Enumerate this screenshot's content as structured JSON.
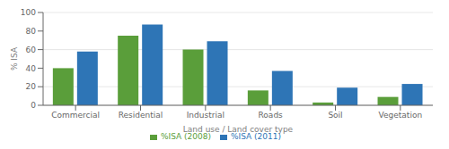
{
  "chart_data": {
    "type": "bar",
    "categories": [
      "Commercial",
      "Residential",
      "Industrial",
      "Roads",
      "Soil",
      "Vegetation"
    ],
    "series": [
      {
        "name": "%ISA (2008)",
        "color": "#5a9e3a",
        "values": [
          40,
          75,
          60,
          16,
          3,
          9
        ]
      },
      {
        "name": "%ISA (2011)",
        "color": "#2e75b6",
        "values": [
          58,
          87,
          69,
          37,
          19,
          23
        ]
      }
    ],
    "xlabel": "Land use / Land cover type",
    "ylabel": "% ISA",
    "ylim": [
      0,
      100
    ],
    "yticks": [
      0,
      20,
      40,
      60,
      80,
      100
    ],
    "grid": true,
    "legend": "bottom"
  }
}
